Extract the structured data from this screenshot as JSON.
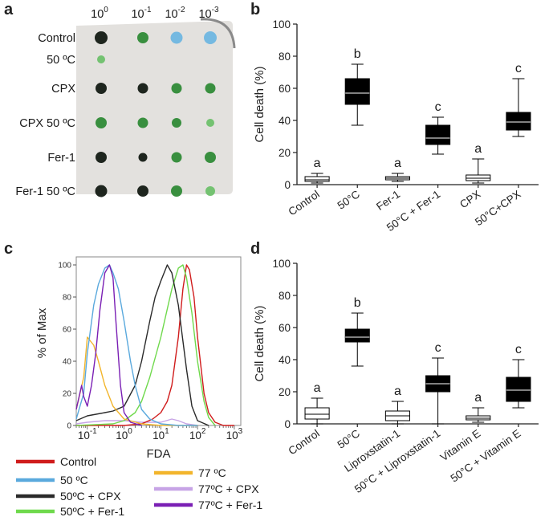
{
  "panel_labels": {
    "a": "a",
    "b": "b",
    "c": "c",
    "d": "d"
  },
  "spot_assay": {
    "columns": [
      {
        "base": "10",
        "exp": "0"
      },
      {
        "base": "10",
        "exp": "-1"
      },
      {
        "base": "10",
        "exp": "-2"
      },
      {
        "base": "10",
        "exp": "-3"
      }
    ],
    "rows": [
      "Control",
      "50 ºC",
      "CPX",
      "CPX 50 ºC",
      "Fer-1",
      "Fer-1 50 ºC"
    ],
    "colors": {
      "plate": "#e3e1de",
      "dark": "#131a13",
      "green": "#2f8a36",
      "blue": "#6fb6e0",
      "light_green": "#6ec06a"
    }
  },
  "chart_data": [
    {
      "id": "b",
      "type": "boxplot",
      "ylabel": "Cell death (%)",
      "ylim": [
        0,
        100
      ],
      "yticks": [
        0,
        20,
        40,
        60,
        80,
        100
      ],
      "categories": [
        "Control",
        "50°C",
        "Fer-1",
        "50°C + Fer-1",
        "CPX",
        "50°C+CPX"
      ],
      "boxes": [
        {
          "min": 1,
          "q1": 2,
          "median": 3,
          "q3": 5,
          "max": 7,
          "fill": "#ffffff"
        },
        {
          "min": 37,
          "q1": 50,
          "median": 57,
          "q3": 66,
          "max": 75,
          "fill": "#000000"
        },
        {
          "min": 2,
          "q1": 3,
          "median": 4,
          "q3": 5,
          "max": 7,
          "fill": "#ffffff"
        },
        {
          "min": 19,
          "q1": 25,
          "median": 29,
          "q3": 37,
          "max": 42,
          "fill": "#000000"
        },
        {
          "min": 1,
          "q1": 2.5,
          "median": 4,
          "q3": 6,
          "max": 16,
          "fill": "#ffffff"
        },
        {
          "min": 30,
          "q1": 34,
          "median": 39,
          "q3": 45,
          "max": 66,
          "fill": "#000000"
        }
      ],
      "letters": [
        "a",
        "b",
        "a",
        "c",
        "a",
        "c"
      ]
    },
    {
      "id": "d",
      "type": "boxplot",
      "ylabel": "Cell death (%)",
      "ylim": [
        0,
        100
      ],
      "yticks": [
        0,
        20,
        40,
        60,
        80,
        100
      ],
      "categories": [
        "Control",
        "50°C",
        "Liproxstatin-1",
        "50°C + Liproxstatin-1",
        "Vitamin E",
        "50°C + Vitamin E"
      ],
      "boxes": [
        {
          "min": 0,
          "q1": 3,
          "median": 6,
          "q3": 10,
          "max": 16,
          "fill": "#ffffff"
        },
        {
          "min": 36,
          "q1": 51,
          "median": 54,
          "q3": 59,
          "max": 69,
          "fill": "#000000"
        },
        {
          "min": 0,
          "q1": 2,
          "median": 5,
          "q3": 8,
          "max": 14,
          "fill": "#ffffff"
        },
        {
          "min": 0,
          "q1": 20,
          "median": 25,
          "q3": 30,
          "max": 41,
          "fill": "#000000"
        },
        {
          "min": 1,
          "q1": 2.5,
          "median": 3.5,
          "q3": 5,
          "max": 10,
          "fill": "#ffffff"
        },
        {
          "min": 10,
          "q1": 14,
          "median": 21,
          "q3": 29,
          "max": 40,
          "fill": "#000000"
        }
      ],
      "letters": [
        "a",
        "b",
        "a",
        "c",
        "a",
        "c"
      ]
    },
    {
      "id": "c",
      "type": "line",
      "xlabel": "FDA",
      "ylabel": "% of Max",
      "xscale": "log",
      "xlim": [
        0.05,
        1500
      ],
      "ylim": [
        0,
        105
      ],
      "yticks": [
        0,
        20,
        40,
        60,
        80,
        100
      ],
      "xticks": [
        {
          "value": 0.1,
          "base": "10",
          "exp": "-1"
        },
        {
          "value": 1,
          "base": "10",
          "exp": "0"
        },
        {
          "value": 10,
          "base": "10",
          "exp": "1"
        },
        {
          "value": 100,
          "base": "10",
          "exp": "2"
        },
        {
          "value": 1000,
          "base": "10",
          "exp": "3"
        }
      ],
      "series": [
        {
          "name": "Control",
          "color": "#d01c1c",
          "x": [
            0.05,
            1,
            3,
            6,
            10,
            15,
            20,
            30,
            40,
            50,
            60,
            80,
            100,
            150,
            200,
            300,
            500,
            1000
          ],
          "y": [
            0,
            0,
            1,
            4,
            8,
            15,
            25,
            55,
            85,
            100,
            97,
            80,
            55,
            20,
            8,
            2,
            0,
            0
          ]
        },
        {
          "name": "50 ºC",
          "color": "#5aa9dd",
          "x": [
            0.05,
            0.08,
            0.1,
            0.15,
            0.2,
            0.3,
            0.4,
            0.5,
            0.7,
            1,
            1.5,
            2,
            3,
            5,
            10,
            30,
            100
          ],
          "y": [
            4,
            20,
            45,
            75,
            88,
            98,
            100,
            95,
            85,
            65,
            40,
            25,
            10,
            4,
            1,
            0,
            0
          ]
        },
        {
          "name": "50ºC + CPX",
          "color": "#2a2a2a",
          "x": [
            0.05,
            0.1,
            0.3,
            0.5,
            1,
            2,
            3,
            5,
            7,
            10,
            15,
            20,
            30,
            50,
            70,
            100,
            200
          ],
          "y": [
            3,
            6,
            8,
            9,
            12,
            25,
            40,
            65,
            80,
            90,
            100,
            95,
            75,
            35,
            12,
            3,
            0
          ]
        },
        {
          "name": "50ºC + Fer-1",
          "color": "#6fd94c",
          "x": [
            0.05,
            0.5,
            1,
            2,
            3,
            5,
            10,
            20,
            30,
            40,
            50,
            70,
            100,
            150,
            200,
            300
          ],
          "y": [
            0,
            1,
            3,
            8,
            15,
            30,
            55,
            85,
            98,
            100,
            92,
            70,
            40,
            15,
            5,
            0
          ]
        },
        {
          "name": "77 ºC",
          "color": "#f2b52c",
          "x": [
            0.05,
            0.08,
            0.1,
            0.15,
            0.2,
            0.3,
            0.5,
            1,
            3,
            10,
            30,
            100
          ],
          "y": [
            10,
            30,
            55,
            50,
            40,
            25,
            12,
            4,
            1,
            0,
            0,
            0
          ]
        },
        {
          "name": "77ºC + CPX",
          "color": "#c7a4e6",
          "x": [
            0.05,
            0.1,
            0.3,
            1,
            3,
            10,
            20,
            30,
            50,
            100
          ],
          "y": [
            1,
            2,
            3,
            3,
            2,
            2,
            4,
            3,
            1,
            0
          ]
        },
        {
          "name": "77ºC + Fer-1",
          "color": "#7a1fb4",
          "x": [
            0.05,
            0.07,
            0.08,
            0.1,
            0.13,
            0.17,
            0.22,
            0.3,
            0.4,
            0.5,
            0.6,
            0.8,
            1,
            1.5,
            3
          ],
          "y": [
            10,
            25,
            18,
            12,
            25,
            45,
            72,
            95,
            100,
            92,
            65,
            25,
            8,
            2,
            0
          ]
        }
      ]
    }
  ]
}
